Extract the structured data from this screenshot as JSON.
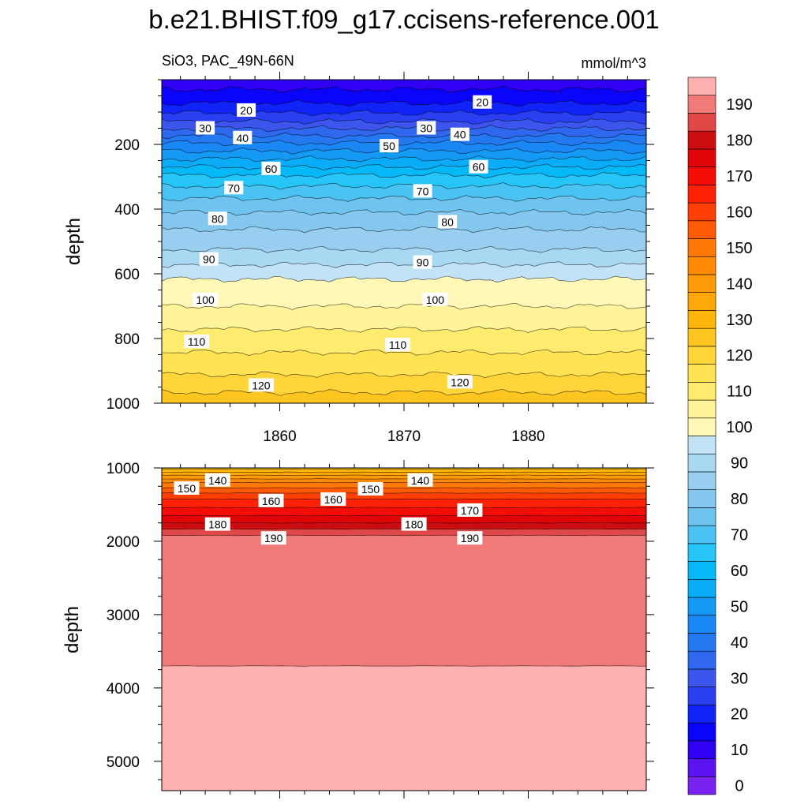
{
  "chart_data": {
    "type": "contour",
    "title": "b.e21.BHIST.f09_g17.ccisens-reference.001",
    "variable_label": "SiO3, PAC_49N-66N",
    "units_label": "mmol/m^3",
    "x": {
      "range": [
        1850.5,
        1889.5
      ],
      "ticks": [
        1860,
        1870,
        1880
      ],
      "tick_labels": [
        "1860",
        "1870",
        "1880"
      ]
    },
    "panels": [
      {
        "name": "upper",
        "ylabel": "depth",
        "yrange": [
          0,
          1000
        ],
        "yticks": [
          200,
          400,
          600,
          800,
          1000
        ],
        "ytick_labels": [
          "200",
          "400",
          "600",
          "800",
          "1000"
        ],
        "contour_labels": [
          {
            "text": "20",
            "x": 1857.3,
            "y": 95
          },
          {
            "text": "20",
            "x": 1876.3,
            "y": 70
          },
          {
            "text": "30",
            "x": 1854.0,
            "y": 150
          },
          {
            "text": "40",
            "x": 1857.0,
            "y": 180
          },
          {
            "text": "30",
            "x": 1871.8,
            "y": 150
          },
          {
            "text": "40",
            "x": 1874.5,
            "y": 170
          },
          {
            "text": "50",
            "x": 1868.8,
            "y": 205
          },
          {
            "text": "60",
            "x": 1859.3,
            "y": 275
          },
          {
            "text": "60",
            "x": 1876.0,
            "y": 270
          },
          {
            "text": "70",
            "x": 1856.3,
            "y": 335
          },
          {
            "text": "70",
            "x": 1871.5,
            "y": 345
          },
          {
            "text": "80",
            "x": 1855.0,
            "y": 430
          },
          {
            "text": "80",
            "x": 1873.5,
            "y": 440
          },
          {
            "text": "90",
            "x": 1854.3,
            "y": 555
          },
          {
            "text": "90",
            "x": 1871.5,
            "y": 565
          },
          {
            "text": "100",
            "x": 1854.0,
            "y": 680
          },
          {
            "text": "100",
            "x": 1872.5,
            "y": 680
          },
          {
            "text": "110",
            "x": 1853.3,
            "y": 810
          },
          {
            "text": "110",
            "x": 1869.5,
            "y": 820
          },
          {
            "text": "120",
            "x": 1858.5,
            "y": 945
          },
          {
            "text": "120",
            "x": 1874.5,
            "y": 935
          }
        ]
      },
      {
        "name": "lower",
        "ylabel": "depth",
        "yrange": [
          1000,
          5400
        ],
        "yticks": [
          1000,
          2000,
          3000,
          4000,
          5000
        ],
        "ytick_labels": [
          "1000",
          "2000",
          "3000",
          "4000",
          "5000"
        ],
        "contour_labels": [
          {
            "text": "150",
            "x": 1852.5,
            "y": 1280
          },
          {
            "text": "140",
            "x": 1855.0,
            "y": 1170
          },
          {
            "text": "160",
            "x": 1859.3,
            "y": 1450
          },
          {
            "text": "160",
            "x": 1864.3,
            "y": 1430
          },
          {
            "text": "150",
            "x": 1867.3,
            "y": 1290
          },
          {
            "text": "140",
            "x": 1871.3,
            "y": 1170
          },
          {
            "text": "170",
            "x": 1875.3,
            "y": 1580
          },
          {
            "text": "180",
            "x": 1855.0,
            "y": 1770
          },
          {
            "text": "180",
            "x": 1870.8,
            "y": 1770
          },
          {
            "text": "190",
            "x": 1859.5,
            "y": 1960
          },
          {
            "text": "190",
            "x": 1875.3,
            "y": 1960
          }
        ]
      }
    ],
    "profile_depth": [
      0,
      50,
      80,
      120,
      160,
      200,
      250,
      300,
      350,
      400,
      450,
      500,
      550,
      600,
      700,
      800,
      900,
      1000,
      1100,
      1200,
      1300,
      1400,
      1500,
      1600,
      1700,
      1800,
      1900,
      2000,
      5400
    ],
    "profile_value": [
      12,
      17,
      21,
      28,
      37,
      46,
      56,
      66,
      73,
      79,
      84,
      88,
      92,
      99,
      105,
      112,
      119,
      128,
      140,
      150,
      157,
      164,
      168,
      173,
      177,
      183,
      189,
      194,
      196
    ],
    "contour_levels": [
      0,
      5,
      10,
      15,
      20,
      25,
      30,
      35,
      40,
      45,
      50,
      55,
      60,
      65,
      70,
      75,
      80,
      85,
      90,
      95,
      100,
      105,
      110,
      115,
      120,
      125,
      130,
      135,
      140,
      145,
      150,
      155,
      160,
      165,
      170,
      175,
      180,
      185,
      190,
      195
    ],
    "colorbar": {
      "levels": [
        0,
        5,
        10,
        15,
        20,
        25,
        30,
        35,
        40,
        45,
        50,
        55,
        60,
        65,
        70,
        75,
        80,
        85,
        90,
        95,
        100,
        105,
        110,
        115,
        120,
        125,
        130,
        135,
        140,
        145,
        150,
        155,
        160,
        165,
        170,
        175,
        180,
        185,
        190,
        195
      ],
      "labels": [
        "0",
        "10",
        "20",
        "30",
        "40",
        "50",
        "60",
        "70",
        "80",
        "90",
        "100",
        "110",
        "120",
        "130",
        "140",
        "150",
        "160",
        "170",
        "180",
        "190"
      ],
      "colors": [
        "#7a23f0",
        "#5a14f2",
        "#2f00f4",
        "#0a05fa",
        "#1023f8",
        "#2a3ff2",
        "#3c55ec",
        "#2f67ef",
        "#2478f0",
        "#1a88f4",
        "#149af4",
        "#0aabf7",
        "#05b8f7",
        "#25c5f7",
        "#4ac3f2",
        "#6ec4ef",
        "#84c8ef",
        "#98cff1",
        "#a9d8f3",
        "#c2e3f5",
        "#fff8b6",
        "#fff49a",
        "#ffec6e",
        "#ffe352",
        "#ffd53a",
        "#ffc620",
        "#ffb60c",
        "#ffa808",
        "#ff9a08",
        "#ff8a08",
        "#ff7808",
        "#ff5a06",
        "#ff3f06",
        "#ff2206",
        "#f40d06",
        "#e00506",
        "#cc0d10",
        "#e04848",
        "#f07a78",
        "#ffb0b0"
      ]
    }
  }
}
